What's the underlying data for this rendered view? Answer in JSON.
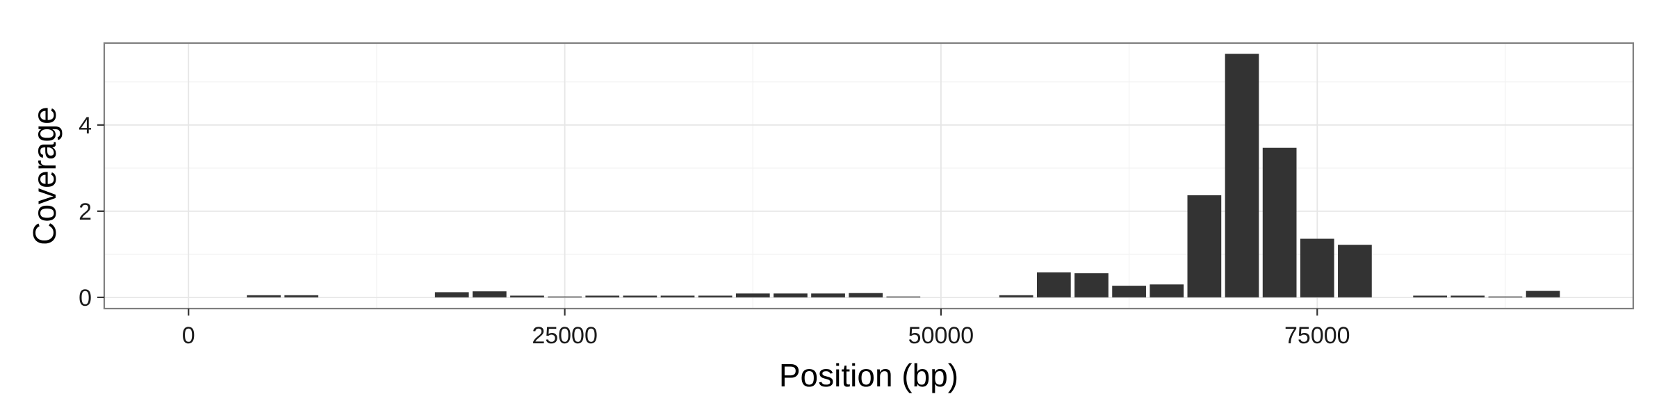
{
  "chart_data": {
    "type": "bar",
    "xlabel": "Position (bp)",
    "ylabel": "Coverage",
    "xlim": [
      -5600,
      96000
    ],
    "ylim": [
      -0.26,
      5.9
    ],
    "grid": true,
    "x_ticks": [
      0,
      25000,
      50000,
      75000
    ],
    "x_tick_labels": [
      "0",
      "25000",
      "50000",
      "75000"
    ],
    "y_ticks": [
      0,
      2,
      4
    ],
    "y_tick_labels": [
      "0",
      "2",
      "4"
    ],
    "bar_width": 2250,
    "bar_color": "#333333",
    "x": [
      5000,
      7500,
      17500,
      20000,
      22500,
      25000,
      27500,
      30000,
      32500,
      35000,
      37500,
      40000,
      42500,
      45000,
      47500,
      55000,
      57500,
      60000,
      62500,
      65000,
      67500,
      70000,
      72500,
      75000,
      77500,
      82500,
      85000,
      87500,
      90000
    ],
    "values": [
      0.05,
      0.05,
      0.12,
      0.14,
      0.04,
      0.02,
      0.04,
      0.04,
      0.04,
      0.04,
      0.09,
      0.09,
      0.09,
      0.1,
      0.02,
      0.05,
      0.58,
      0.56,
      0.27,
      0.3,
      2.37,
      5.65,
      3.47,
      1.36,
      1.22,
      0.04,
      0.04,
      0.02,
      0.15
    ]
  }
}
